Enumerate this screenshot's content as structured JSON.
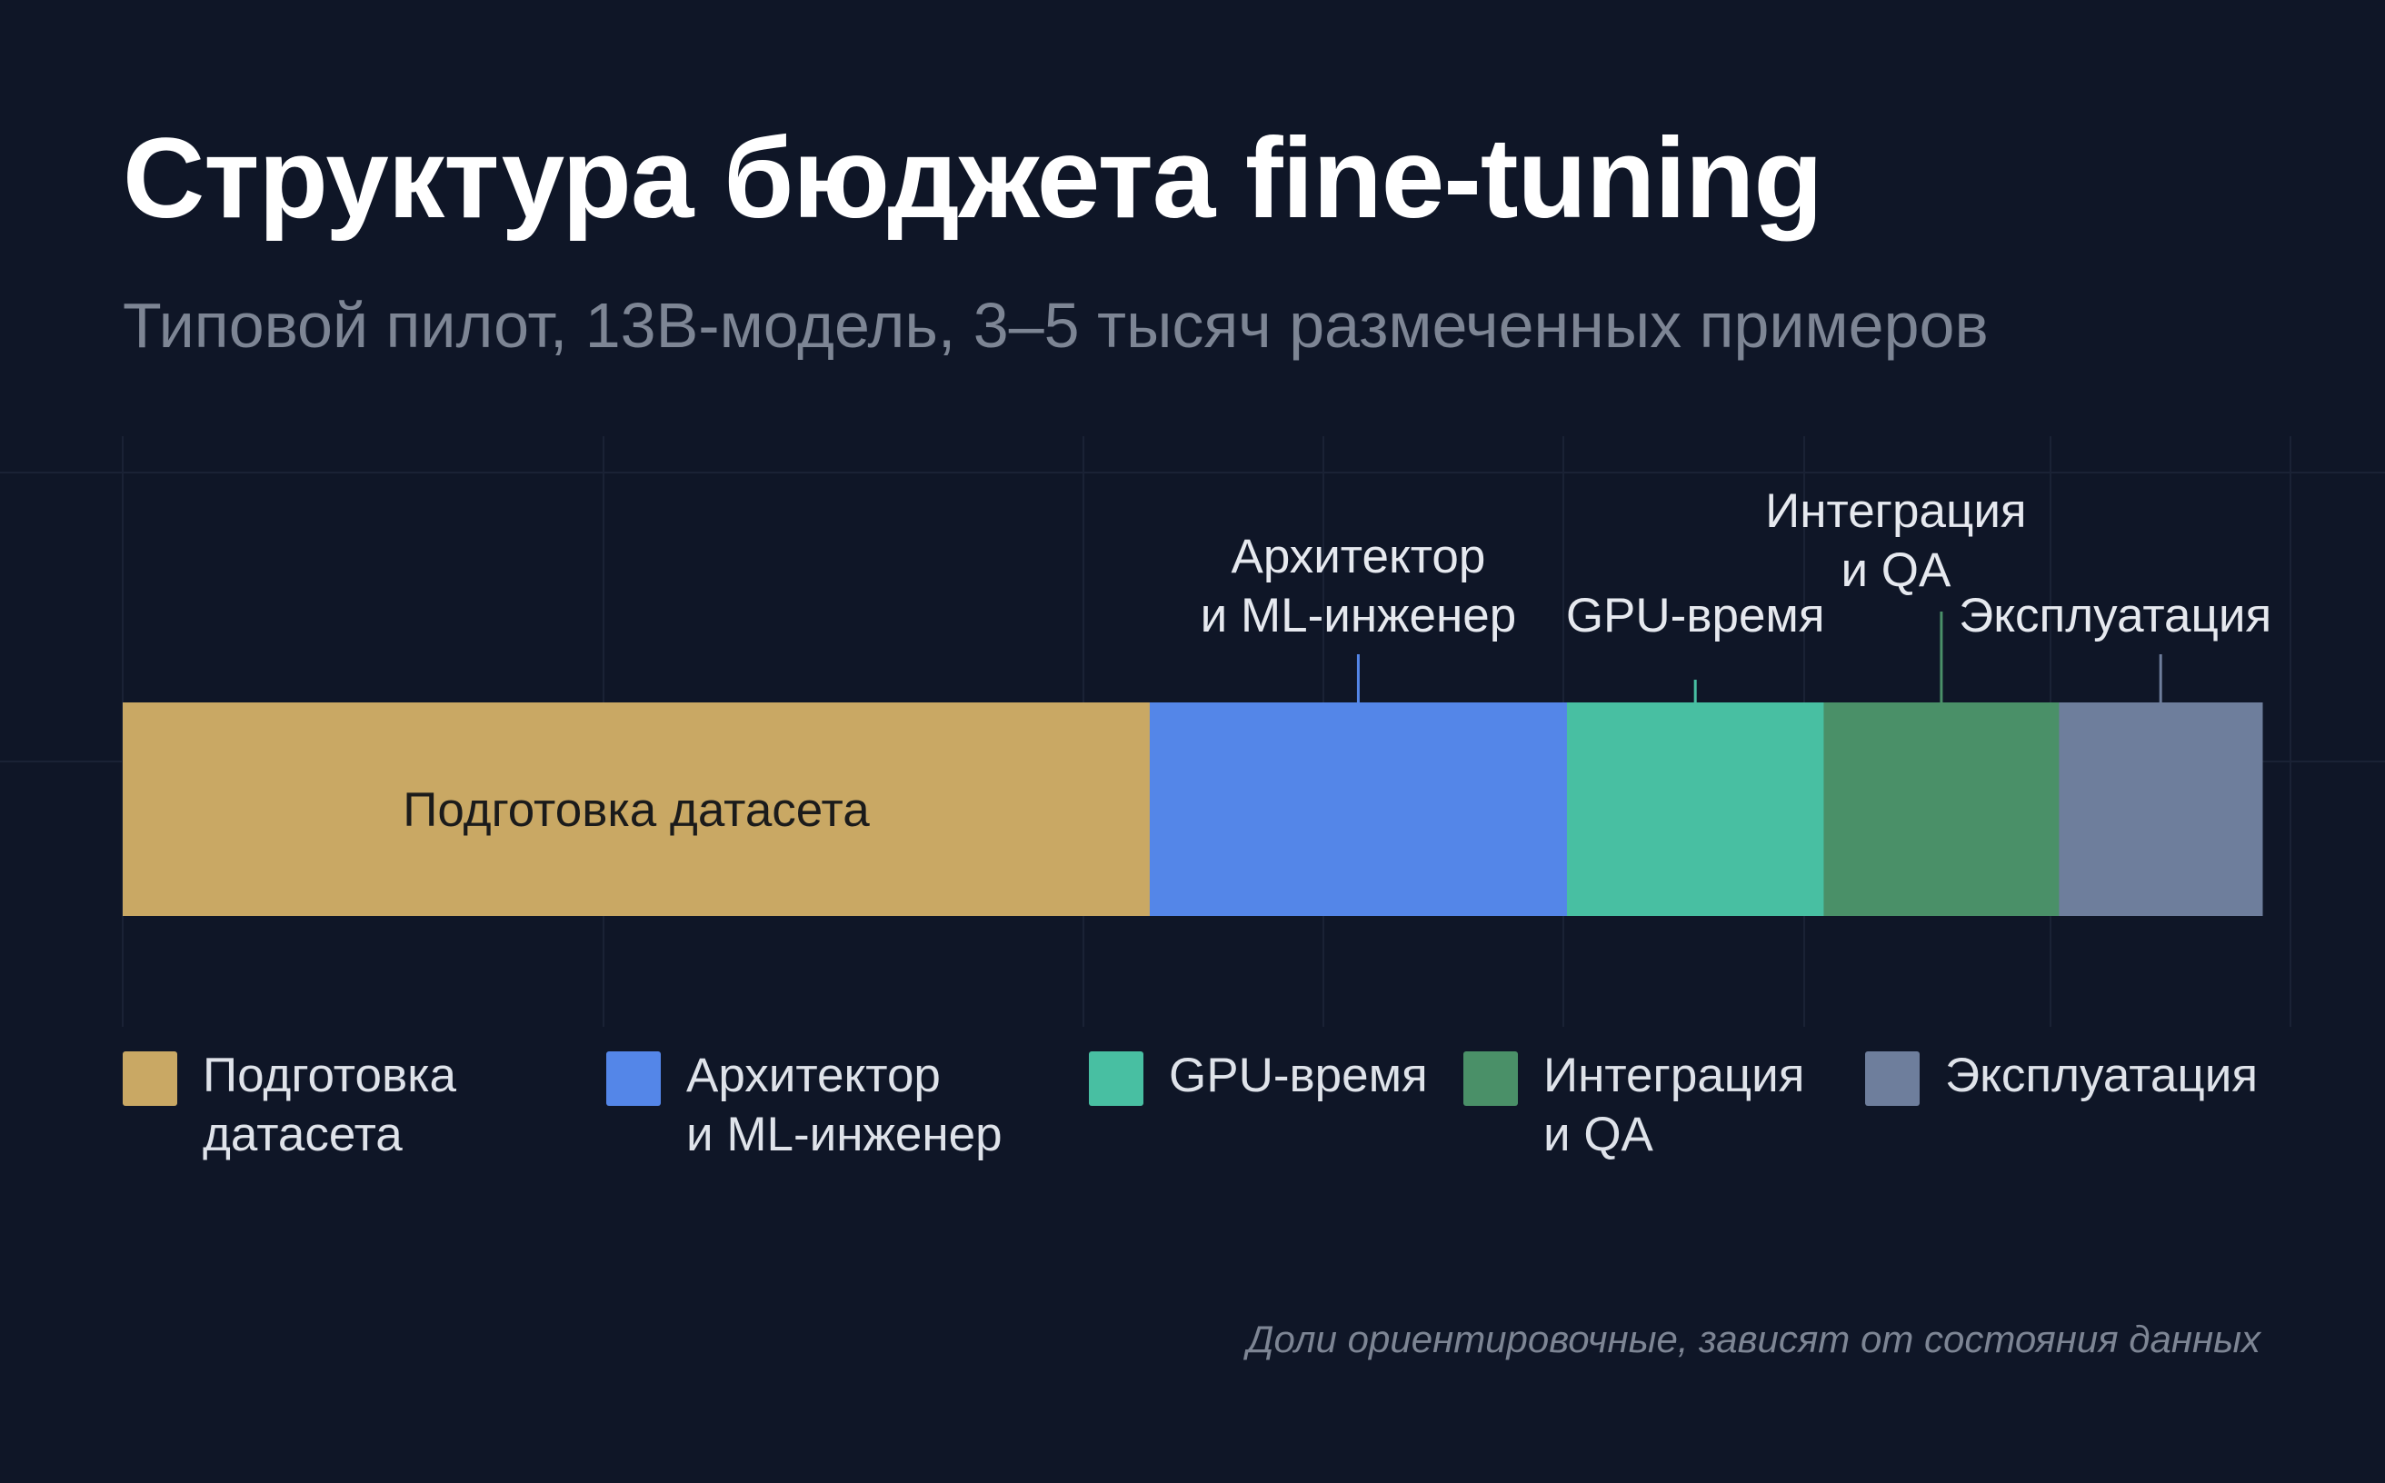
{
  "title": "Структура бюджета fine-tuning",
  "subtitle": "Типовой пилот, 13B-модель, 3–5 тысяч размеченных примеров",
  "footnote": "Доли ориентировочные, зависят от состояния данных",
  "chart_data": {
    "type": "bar",
    "orientation": "horizontal-stacked-100",
    "title": "",
    "xlabel": "",
    "ylabel": "",
    "unit": "%",
    "grid": true,
    "legend_position": "bottom",
    "series": [
      {
        "name": "Подготовка датасета",
        "bar_label": "Подготовка датасета",
        "value": 48,
        "color": "#c9a864",
        "callout": ""
      },
      {
        "name": "Архитектор\nи ML-инженер",
        "bar_label": "",
        "value": 19.5,
        "color": "#5486e8",
        "callout": "Архитектор\nи ML-инженер"
      },
      {
        "name": "GPU-время",
        "bar_label": "",
        "value": 12,
        "color": "#48bfa2",
        "callout": "GPU-время"
      },
      {
        "name": "Интеграция\nи QA",
        "bar_label": "",
        "value": 11,
        "color": "#4a9068",
        "callout": "Интеграция\nи QA"
      },
      {
        "name": "Эксплуатация",
        "bar_label": "",
        "value": 9.5,
        "color": "#6e7e9c",
        "callout": "Эксплуатация"
      }
    ]
  }
}
